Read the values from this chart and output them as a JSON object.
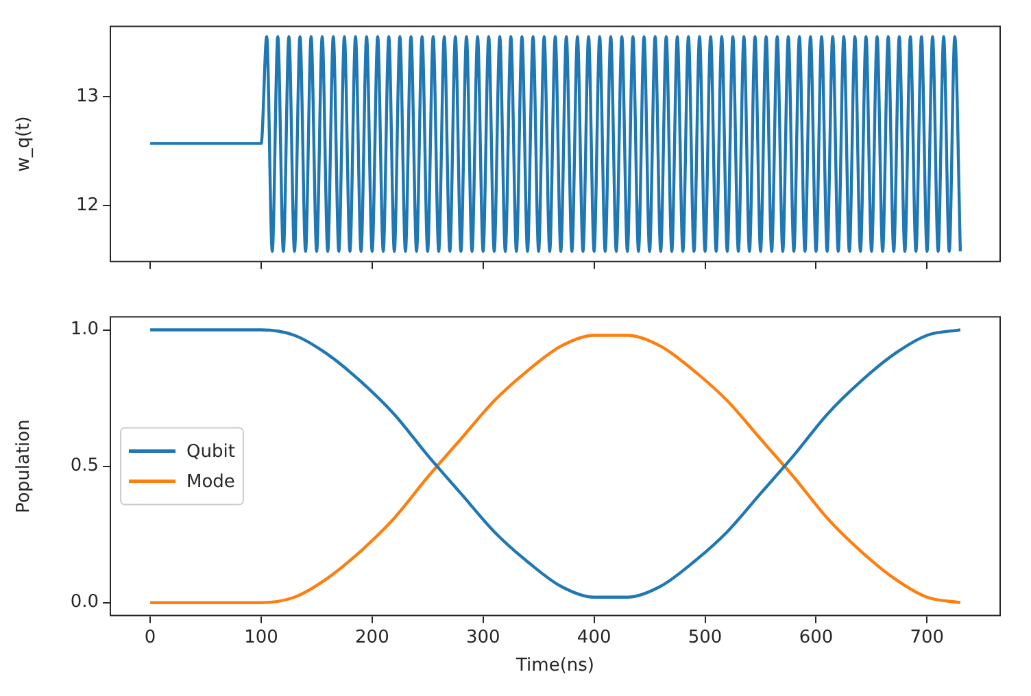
{
  "chart_data": [
    {
      "type": "line",
      "ylabel": "w_q(t)",
      "xlim": [
        -36.5,
        766.5
      ],
      "xticks": [
        {
          "value": 0,
          "label": null
        },
        {
          "value": 100,
          "label": null
        },
        {
          "value": 200,
          "label": null
        },
        {
          "value": 300,
          "label": null
        },
        {
          "value": 400,
          "label": null
        },
        {
          "value": 500,
          "label": null
        },
        {
          "value": 600,
          "label": null
        },
        {
          "value": 700,
          "label": null
        }
      ],
      "ylim": [
        11.48,
        13.65
      ],
      "yticks": [
        12,
        13
      ],
      "tick_labels": "y",
      "marker": "none",
      "series": [
        {
          "color": "#1f77b4",
          "x": [
            0,
            100,
            105,
            110,
            115,
            120,
            125,
            130,
            135,
            140,
            145,
            150,
            155,
            160,
            165,
            170,
            175,
            180,
            185,
            190,
            195,
            200,
            205,
            210,
            215,
            220,
            225,
            230,
            235,
            240,
            245,
            250,
            255,
            260,
            265,
            270,
            275,
            280,
            285,
            290,
            295,
            300,
            305,
            310,
            315,
            320,
            325,
            330,
            335,
            340,
            345,
            350,
            355,
            360,
            365,
            370,
            375,
            380,
            385,
            390,
            395,
            400,
            405,
            410,
            415,
            420,
            425,
            430,
            435,
            440,
            445,
            450,
            455,
            460,
            465,
            470,
            475,
            480,
            485,
            490,
            495,
            500,
            505,
            510,
            515,
            520,
            525,
            530,
            535,
            540,
            545,
            550,
            555,
            560,
            565,
            570,
            575,
            580,
            585,
            590,
            595,
            600,
            605,
            610,
            615,
            620,
            625,
            630,
            635,
            640,
            645,
            650,
            655,
            660,
            665,
            670,
            675,
            680,
            685,
            690,
            695,
            700,
            705,
            710,
            715,
            720,
            725,
            730
          ],
          "values": [
            12.57,
            12.57,
            13.55,
            11.58,
            13.55,
            11.58,
            13.55,
            11.58,
            13.55,
            11.58,
            13.55,
            11.58,
            13.55,
            11.58,
            13.55,
            11.58,
            13.55,
            11.58,
            13.55,
            11.58,
            13.55,
            11.58,
            13.55,
            11.58,
            13.55,
            11.58,
            13.55,
            11.58,
            13.55,
            11.58,
            13.55,
            11.58,
            13.55,
            11.58,
            13.55,
            11.58,
            13.55,
            11.58,
            13.55,
            11.58,
            13.55,
            11.58,
            13.55,
            11.58,
            13.55,
            11.58,
            13.55,
            11.58,
            13.55,
            11.58,
            13.55,
            11.58,
            13.55,
            11.58,
            13.55,
            11.58,
            13.55,
            11.58,
            13.55,
            11.58,
            13.55,
            11.58,
            13.55,
            11.58,
            13.55,
            11.58,
            13.55,
            11.58,
            13.55,
            11.58,
            13.55,
            11.58,
            13.55,
            11.58,
            13.55,
            11.58,
            13.55,
            11.58,
            13.55,
            11.58,
            13.55,
            11.58,
            13.55,
            11.58,
            13.55,
            11.58,
            13.55,
            11.58,
            13.55,
            11.58,
            13.55,
            11.58,
            13.55,
            11.58,
            13.55,
            11.58,
            13.55,
            11.58,
            13.55,
            11.58,
            13.55,
            11.58,
            13.55,
            11.58,
            13.55,
            11.58,
            13.55,
            11.58,
            13.55,
            11.58,
            13.55,
            11.58,
            13.55,
            11.58,
            13.55,
            11.58,
            13.55,
            11.58,
            13.55,
            11.58,
            13.55,
            11.58,
            13.55,
            11.58,
            13.55,
            11.58,
            13.55,
            11.58
          ]
        }
      ]
    },
    {
      "type": "line",
      "xlabel": "Time(ns)",
      "ylabel": "Population",
      "xlim": [
        -36.5,
        766.5
      ],
      "xticks": [
        0,
        100,
        200,
        300,
        400,
        500,
        600,
        700
      ],
      "ylim": [
        -0.05,
        1.05
      ],
      "yticks": [
        {
          "value": 0,
          "label": "0.0"
        },
        {
          "value": 0.5,
          "label": "0.5"
        },
        {
          "value": 1,
          "label": "1.0"
        }
      ],
      "legend": "left",
      "marker": "none",
      "x": [
        0,
        100,
        130,
        160,
        190,
        220,
        250,
        280,
        310,
        340,
        370,
        400,
        430,
        460,
        490,
        520,
        550,
        580,
        610,
        640,
        670,
        700,
        730
      ],
      "series": [
        {
          "name": "Qubit",
          "color": "#1f77b4",
          "values": [
            1,
            1,
            0.98,
            0.91,
            0.81,
            0.69,
            0.54,
            0.4,
            0.26,
            0.15,
            0.06,
            0.02,
            0.02,
            0.06,
            0.15,
            0.26,
            0.4,
            0.54,
            0.69,
            0.81,
            0.91,
            0.98,
            1
          ]
        },
        {
          "name": "Mode",
          "color": "#ff7f0e",
          "values": [
            0,
            0,
            0.02,
            0.09,
            0.19,
            0.31,
            0.46,
            0.6,
            0.74,
            0.85,
            0.94,
            0.98,
            0.98,
            0.94,
            0.85,
            0.74,
            0.6,
            0.46,
            0.31,
            0.19,
            0.09,
            0.02,
            0
          ]
        }
      ]
    }
  ]
}
